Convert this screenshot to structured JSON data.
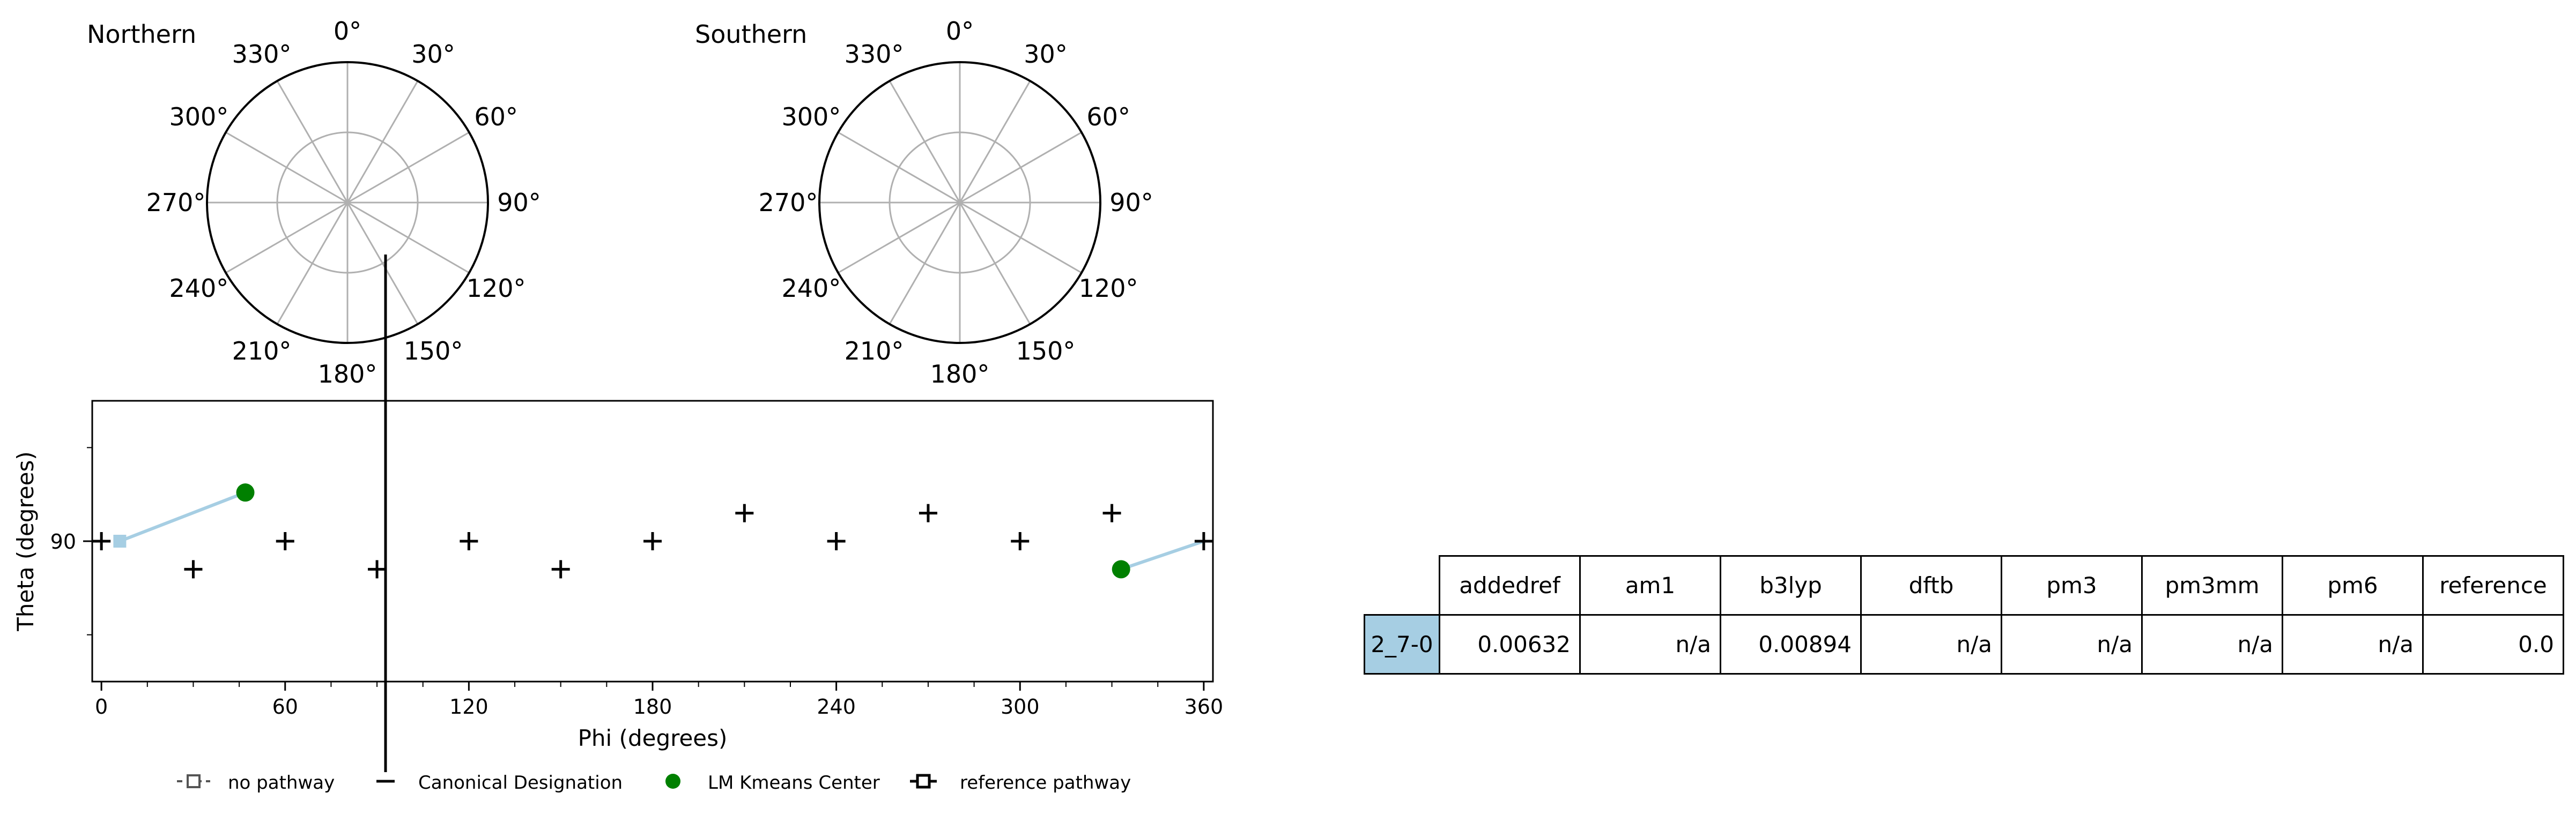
{
  "polar_plots": [
    {
      "title": "Northern"
    },
    {
      "title": "Southern"
    }
  ],
  "polar_tick_labels": [
    "0°",
    "30°",
    "60°",
    "90°",
    "120°",
    "150°",
    "180°",
    "210°",
    "240°",
    "270°",
    "300°",
    "330°"
  ],
  "chart_data": {
    "type": "scatter",
    "xlabel": "Phi (degrees)",
    "ylabel": "Theta (degrees)",
    "xlim": [
      -3,
      363
    ],
    "ylim": [
      75,
      105
    ],
    "xticks": [
      0,
      60,
      120,
      180,
      240,
      300,
      360
    ],
    "yticks": [
      90
    ],
    "grid": false,
    "legend_position": "bottom",
    "legend": [
      "no pathway",
      "Canonical Designation",
      "LM Kmeans Center",
      "reference pathway"
    ],
    "canonical_designation": {
      "x": [
        0,
        30,
        60,
        90,
        120,
        150,
        180,
        210,
        240,
        270,
        300,
        330,
        360
      ],
      "y": [
        90,
        87,
        90,
        87,
        90,
        87,
        90,
        93,
        90,
        93,
        90,
        93,
        90
      ]
    },
    "lm_kmeans_center": {
      "x": [
        47,
        333
      ],
      "y": [
        95.2,
        87
      ]
    },
    "reference_pathway": {
      "segments": [
        {
          "x": [
            6,
            47
          ],
          "y": [
            90,
            95.2
          ]
        },
        {
          "x": [
            333,
            360
          ],
          "y": [
            87,
            90
          ]
        }
      ]
    },
    "colors": {
      "pathway": "#a6cee3",
      "center": "#008000",
      "canonical": "#000000"
    }
  },
  "table": {
    "headers": [
      "addedref",
      "am1",
      "b3lyp",
      "dftb",
      "pm3",
      "pm3mm",
      "pm6",
      "reference"
    ],
    "rows": [
      {
        "label": "2_7-0",
        "values": [
          "0.00632",
          "n/a",
          "0.00894",
          "n/a",
          "n/a",
          "n/a",
          "n/a",
          "0.0"
        ]
      }
    ],
    "row_label_color": "#a6cee3"
  }
}
